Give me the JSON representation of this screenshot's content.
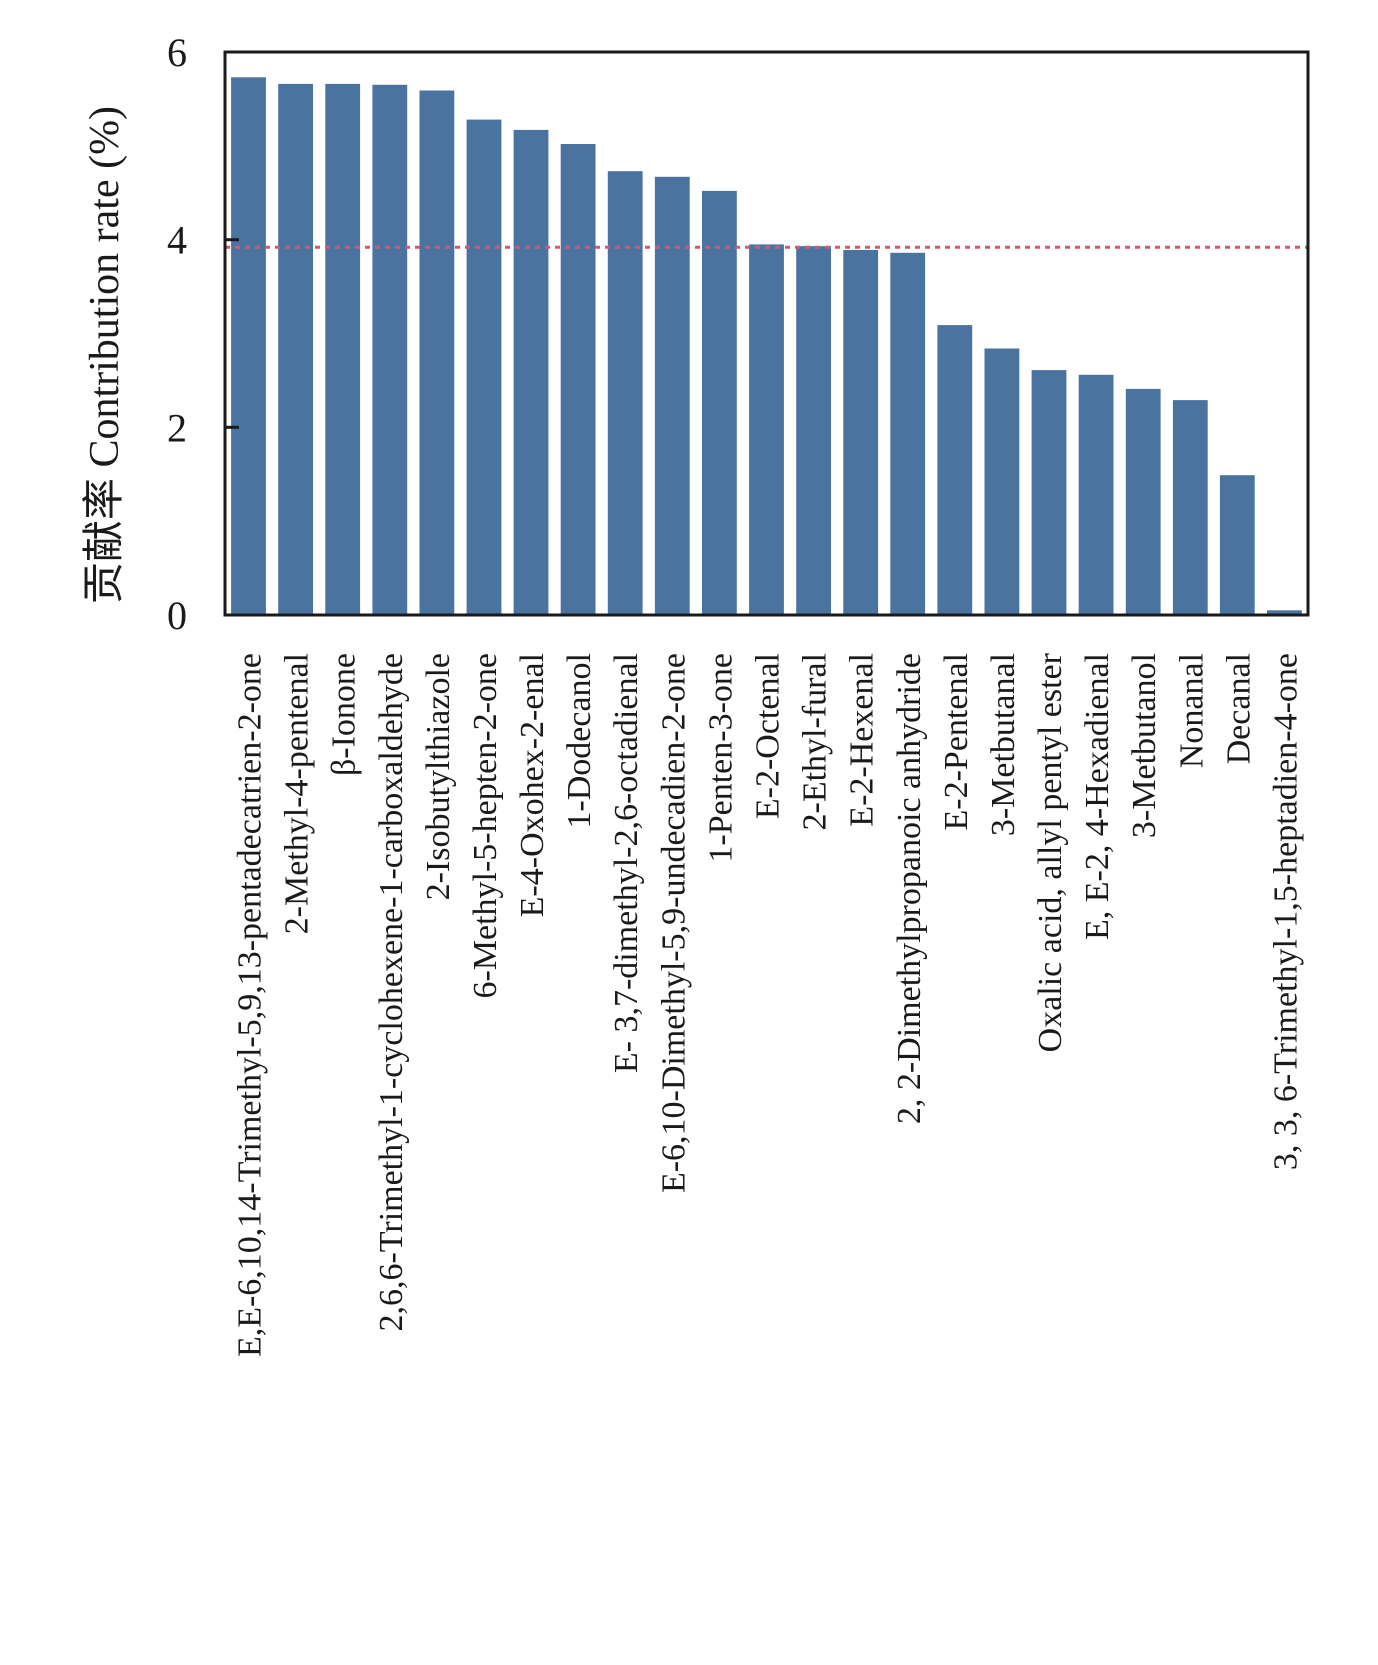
{
  "chart_data": {
    "type": "bar",
    "title": "",
    "xlabel": "",
    "ylabel": "贡献率 Contribution rate (%)",
    "ylim": [
      0,
      6
    ],
    "yticks": [
      "0",
      "2",
      "4",
      "6"
    ],
    "grid": false,
    "bar_color": "#4a73a0",
    "threshold": {
      "value": 3.92,
      "color": "#d9546e",
      "style": "dotted"
    },
    "categories": [
      "E,E-6,10,14-Trimethyl-5,9,13-pentadecatrien-2-one",
      "2-Methyl-4-pentenal",
      "β-Ionone",
      "2,6,6-Trimethyl-1-cyclohexene-1-carboxaldehyde",
      "2-Isobutylthiazole",
      "6-Methyl-5-hepten-2-one",
      "E-4-Oxohex-2-enal",
      "1-Dodecanol",
      "E- 3,7-dimethyl-2,6-octadienal",
      "E-6,10-Dimethyl-5,9-undecadien-2-one",
      "1-Penten-3-one",
      "E-2-Octenal",
      "2-Ethyl-fural",
      "E-2-Hexenal",
      "2, 2-Dimethylpropanoic anhydride",
      "E-2-Pentenal",
      "3-Metbutanal",
      "Oxalic acid, allyl pentyl ester",
      "E, E-2, 4-Hexadienal",
      "3-Metbutanol",
      "Nonanal",
      "Decanal",
      "3, 3, 6-Trimethyl-1,5-heptadien-4-one"
    ],
    "values": [
      5.73,
      5.66,
      5.66,
      5.65,
      5.59,
      5.28,
      5.17,
      5.02,
      4.73,
      4.67,
      4.52,
      3.95,
      3.93,
      3.89,
      3.86,
      3.09,
      2.84,
      2.61,
      2.56,
      2.41,
      2.29,
      1.49,
      0.05
    ]
  }
}
